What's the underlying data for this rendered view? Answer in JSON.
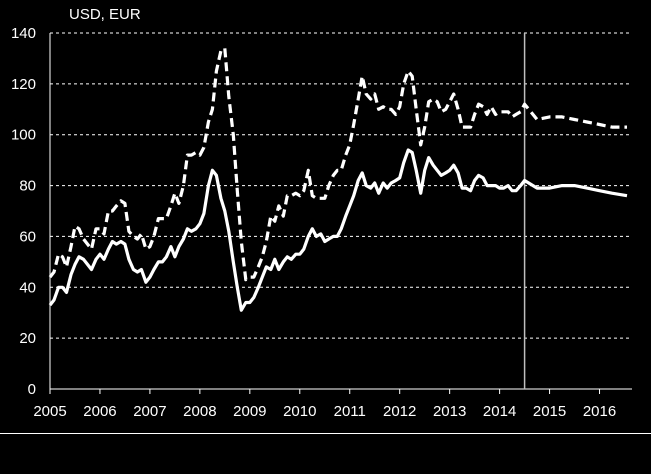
{
  "chart_data": {
    "type": "line",
    "title": "",
    "ylabel": "USD, EUR",
    "xlabel": "",
    "ylim": [
      0,
      140
    ],
    "xlim": [
      2005,
      2016.65
    ],
    "y_ticks": [
      0,
      20,
      40,
      60,
      80,
      100,
      120,
      140
    ],
    "x_ticks": [
      2005,
      2006,
      2007,
      2008,
      2009,
      2010,
      2011,
      2012,
      2013,
      2014,
      2015,
      2016
    ],
    "grid": "horizontal dashed",
    "forecast_divider_x": 2014.5,
    "colors": {
      "background": "#000000",
      "series": "#ffffff",
      "divider": "#bfbfbf"
    },
    "series": [
      {
        "style": "dashed",
        "x": [
          2005.0,
          2005.08,
          2005.17,
          2005.25,
          2005.33,
          2005.42,
          2005.5,
          2005.58,
          2005.67,
          2005.75,
          2005.83,
          2005.92,
          2006.0,
          2006.08,
          2006.17,
          2006.25,
          2006.33,
          2006.42,
          2006.5,
          2006.58,
          2006.67,
          2006.75,
          2006.83,
          2006.92,
          2007.0,
          2007.08,
          2007.17,
          2007.25,
          2007.33,
          2007.42,
          2007.5,
          2007.58,
          2007.67,
          2007.75,
          2007.83,
          2007.92,
          2008.0,
          2008.08,
          2008.17,
          2008.25,
          2008.33,
          2008.42,
          2008.5,
          2008.58,
          2008.67,
          2008.75,
          2008.83,
          2008.92,
          2009.0,
          2009.08,
          2009.17,
          2009.25,
          2009.33,
          2009.42,
          2009.5,
          2009.58,
          2009.67,
          2009.75,
          2009.83,
          2009.92,
          2010.0,
          2010.08,
          2010.17,
          2010.25,
          2010.33,
          2010.42,
          2010.5,
          2010.58,
          2010.67,
          2010.75,
          2010.83,
          2010.92,
          2011.0,
          2011.08,
          2011.17,
          2011.25,
          2011.33,
          2011.42,
          2011.5,
          2011.58,
          2011.67,
          2011.75,
          2011.83,
          2011.92,
          2012.0,
          2012.08,
          2012.17,
          2012.25,
          2012.33,
          2012.42,
          2012.5,
          2012.58,
          2012.67,
          2012.75,
          2012.83,
          2012.92,
          2013.0,
          2013.08,
          2013.17,
          2013.25,
          2013.33,
          2013.42,
          2013.5,
          2013.58,
          2013.67,
          2013.75,
          2013.83,
          2013.92,
          2014.0,
          2014.08,
          2014.17,
          2014.25,
          2014.33,
          2014.42,
          2014.5,
          2014.75,
          2015.0,
          2015.25,
          2015.5,
          2015.75,
          2016.0,
          2016.25,
          2016.55
        ],
        "values": [
          44,
          46,
          53,
          52,
          48,
          56,
          64,
          63,
          59,
          57,
          55,
          63,
          63,
          61,
          70,
          70,
          72,
          74,
          73,
          62,
          60,
          59,
          61,
          55,
          56,
          60,
          67,
          67,
          67,
          72,
          77,
          73,
          80,
          92,
          92,
          93,
          92,
          95,
          105,
          110,
          125,
          133,
          134,
          115,
          100,
          78,
          58,
          43,
          44,
          44,
          48,
          52,
          58,
          68,
          66,
          72,
          68,
          76,
          76,
          77,
          76,
          78,
          86,
          76,
          75,
          75,
          75,
          80,
          84,
          86,
          86,
          92,
          96,
          104,
          114,
          123,
          116,
          114,
          116,
          110,
          111,
          110,
          110,
          108,
          111,
          120,
          125,
          123,
          110,
          96,
          103,
          113,
          114,
          113,
          109,
          110,
          113,
          116,
          110,
          103,
          103,
          103,
          108,
          112,
          111,
          108,
          111,
          108,
          109,
          109,
          109,
          107,
          108,
          109,
          112,
          106,
          107,
          107,
          106,
          105,
          104,
          103,
          103
        ]
      },
      {
        "style": "solid",
        "x": [
          2005.0,
          2005.08,
          2005.17,
          2005.25,
          2005.33,
          2005.42,
          2005.5,
          2005.58,
          2005.67,
          2005.75,
          2005.83,
          2005.92,
          2006.0,
          2006.08,
          2006.17,
          2006.25,
          2006.33,
          2006.42,
          2006.5,
          2006.58,
          2006.67,
          2006.75,
          2006.83,
          2006.92,
          2007.0,
          2007.08,
          2007.17,
          2007.25,
          2007.33,
          2007.42,
          2007.5,
          2007.58,
          2007.67,
          2007.75,
          2007.83,
          2007.92,
          2008.0,
          2008.08,
          2008.17,
          2008.25,
          2008.33,
          2008.42,
          2008.5,
          2008.58,
          2008.67,
          2008.75,
          2008.83,
          2008.92,
          2009.0,
          2009.08,
          2009.17,
          2009.25,
          2009.33,
          2009.42,
          2009.5,
          2009.58,
          2009.67,
          2009.75,
          2009.83,
          2009.92,
          2010.0,
          2010.08,
          2010.17,
          2010.25,
          2010.33,
          2010.42,
          2010.5,
          2010.58,
          2010.67,
          2010.75,
          2010.83,
          2010.92,
          2011.0,
          2011.08,
          2011.17,
          2011.25,
          2011.33,
          2011.42,
          2011.5,
          2011.58,
          2011.67,
          2011.75,
          2011.83,
          2011.92,
          2012.0,
          2012.08,
          2012.17,
          2012.25,
          2012.33,
          2012.42,
          2012.5,
          2012.58,
          2012.67,
          2012.75,
          2012.83,
          2012.92,
          2013.0,
          2013.08,
          2013.17,
          2013.25,
          2013.33,
          2013.42,
          2013.5,
          2013.58,
          2013.67,
          2013.75,
          2013.83,
          2013.92,
          2014.0,
          2014.08,
          2014.17,
          2014.25,
          2014.33,
          2014.42,
          2014.5,
          2014.75,
          2015.0,
          2015.25,
          2015.5,
          2015.75,
          2016.0,
          2016.25,
          2016.55
        ],
        "values": [
          33,
          35,
          40,
          40,
          38,
          45,
          49,
          52,
          51,
          49,
          47,
          51,
          53,
          51,
          55,
          58,
          57,
          58,
          57,
          51,
          47,
          46,
          47,
          42,
          44,
          47,
          50,
          50,
          52,
          56,
          52,
          56,
          59,
          63,
          62,
          63,
          65,
          69,
          80,
          86,
          84,
          75,
          70,
          62,
          50,
          40,
          31,
          34,
          34,
          36,
          40,
          44,
          48,
          47,
          51,
          47,
          50,
          52,
          51,
          53,
          53,
          55,
          60,
          63,
          60,
          61,
          58,
          59,
          60,
          60,
          63,
          68,
          72,
          76,
          82,
          85,
          80,
          79,
          81,
          77,
          81,
          79,
          81,
          82,
          83,
          89,
          94,
          93,
          86,
          77,
          86,
          91,
          88,
          86,
          84,
          85,
          86,
          88,
          85,
          79,
          79,
          78,
          82,
          84,
          83,
          80,
          80,
          80,
          79,
          79,
          80,
          78,
          78,
          80,
          82,
          79,
          79,
          80,
          80,
          79,
          78,
          77,
          76
        ]
      }
    ]
  }
}
